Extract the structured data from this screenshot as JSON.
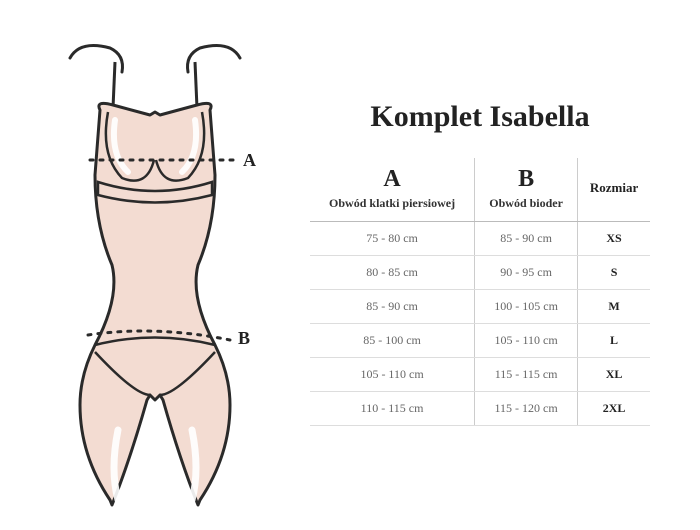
{
  "title": "Komplet Isabella",
  "diagram": {
    "marker_a": "A",
    "marker_b": "B",
    "colors": {
      "body_fill": "#f3dcd2",
      "body_stroke": "#2a2a2a",
      "strap": "#2a2a2a",
      "dotted": "#2a2a2a"
    }
  },
  "table": {
    "columns": [
      {
        "key": "a",
        "big": "A",
        "sub": "Obwód klatki piersiowej"
      },
      {
        "key": "b",
        "big": "B",
        "sub": "Obwód bioder"
      },
      {
        "key": "size",
        "label": "Rozmiar"
      }
    ],
    "rows": [
      {
        "a": "75 - 80 cm",
        "b": "85 - 90 cm",
        "size": "XS"
      },
      {
        "a": "80 - 85 cm",
        "b": "90 - 95 cm",
        "size": "S"
      },
      {
        "a": "85 - 90 cm",
        "b": "100 - 105 cm",
        "size": "M"
      },
      {
        "a": "85 - 100 cm",
        "b": "105 - 110 cm",
        "size": "L"
      },
      {
        "a": "105 - 110 cm",
        "b": "115 - 115 cm",
        "size": "XL"
      },
      {
        "a": "110 - 115 cm",
        "b": "115 - 120 cm",
        "size": "2XL"
      }
    ]
  }
}
